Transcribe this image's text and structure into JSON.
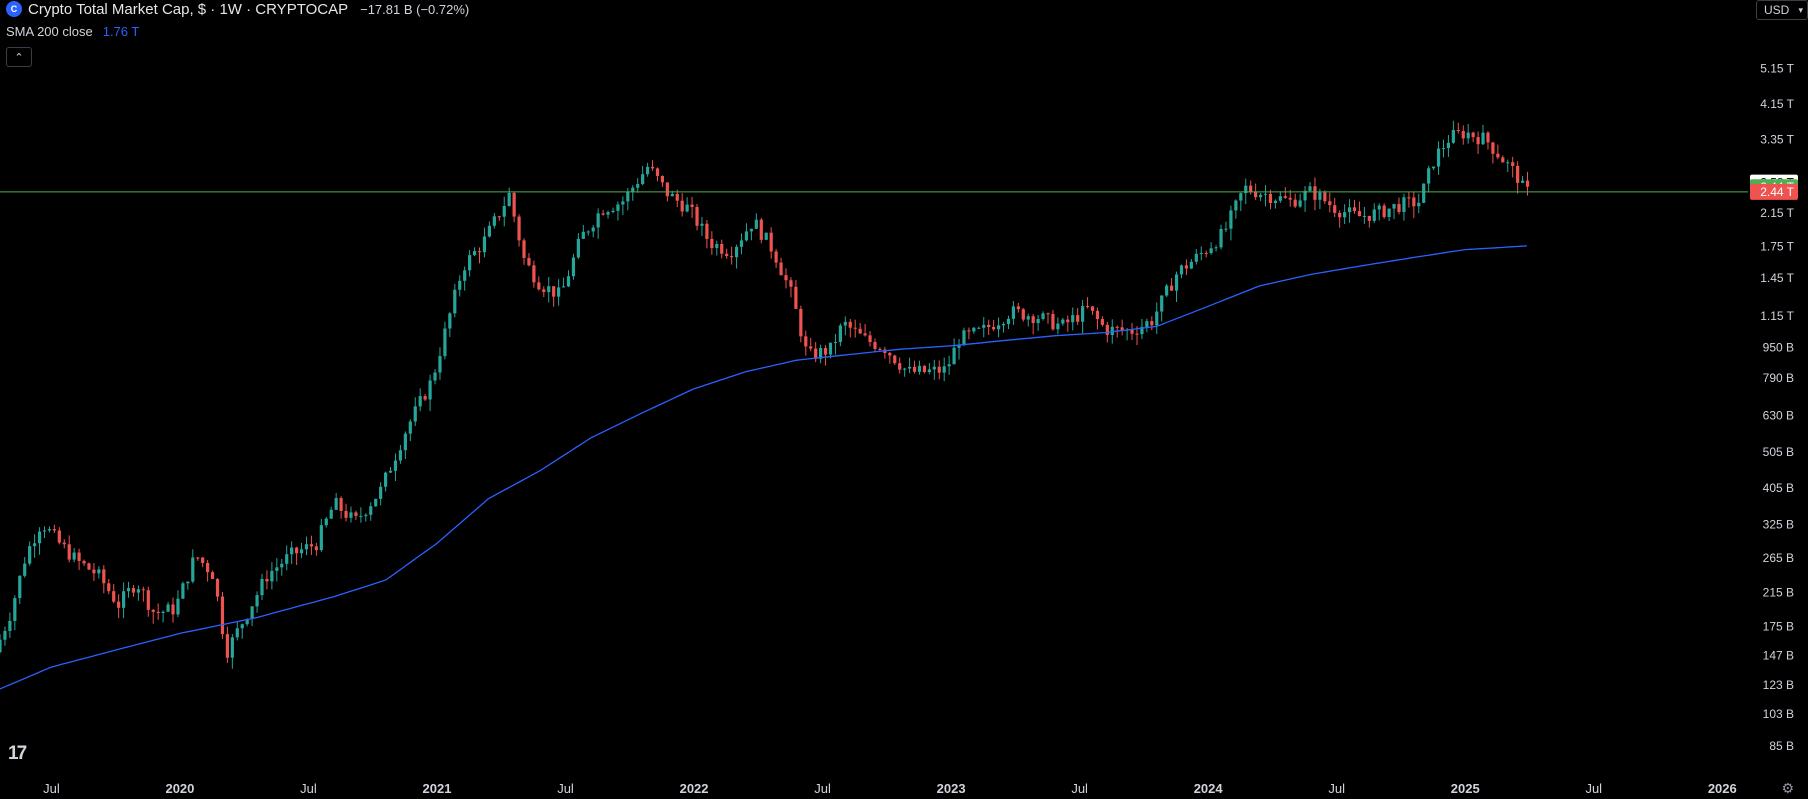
{
  "header": {
    "symbol_icon": "coin-icon",
    "title": "Crypto Total Market Cap, $ · 1W · CRYPTOCAP",
    "change": "−17.81 B (−0.72%)"
  },
  "indicator": {
    "label": "SMA 200 close",
    "value": "1.76 T"
  },
  "currency": {
    "label": "USD",
    "icon": "chevron-down-icon"
  },
  "collapse_icon": "chevron-up-icon",
  "logo": "17",
  "settings_icon": "gear-icon",
  "colors": {
    "background": "#000000",
    "up": "#26a69a",
    "down": "#ef5350",
    "sma": "#2962ff",
    "hline": "#4caf50",
    "text": "#d1d4dc"
  },
  "chart_data": {
    "type": "candlestick",
    "title": "Crypto Total Market Cap, $ · 1W · CRYPTOCAP",
    "y_scale": "log",
    "ylim": [
      0.078,
      6.2
    ],
    "y_unit": "trillion USD",
    "x_range": [
      2019.3,
      2026.1
    ],
    "y_ticks": [
      {
        "label": "5.15 T",
        "value": 5.15
      },
      {
        "label": "4.15 T",
        "value": 4.15
      },
      {
        "label": "3.35 T",
        "value": 3.35
      },
      {
        "label": "2.15 T",
        "value": 2.15
      },
      {
        "label": "1.75 T",
        "value": 1.75
      },
      {
        "label": "1.45 T",
        "value": 1.45
      },
      {
        "label": "1.15 T",
        "value": 1.15
      },
      {
        "label": "950 B",
        "value": 0.95
      },
      {
        "label": "790 B",
        "value": 0.79
      },
      {
        "label": "630 B",
        "value": 0.63
      },
      {
        "label": "505 B",
        "value": 0.505
      },
      {
        "label": "405 B",
        "value": 0.405
      },
      {
        "label": "325 B",
        "value": 0.325
      },
      {
        "label": "265 B",
        "value": 0.265
      },
      {
        "label": "215 B",
        "value": 0.215
      },
      {
        "label": "175 B",
        "value": 0.175
      },
      {
        "label": "147 B",
        "value": 0.147
      },
      {
        "label": "123 B",
        "value": 0.123
      },
      {
        "label": "103 B",
        "value": 0.103
      },
      {
        "label": "85 B",
        "value": 0.085
      }
    ],
    "x_ticks": [
      {
        "label": "Jul",
        "value": 2019.5,
        "bold": false
      },
      {
        "label": "2020",
        "value": 2020.0,
        "bold": true
      },
      {
        "label": "Jul",
        "value": 2020.5,
        "bold": false
      },
      {
        "label": "2021",
        "value": 2021.0,
        "bold": true
      },
      {
        "label": "Jul",
        "value": 2021.5,
        "bold": false
      },
      {
        "label": "2022",
        "value": 2022.0,
        "bold": true
      },
      {
        "label": "Jul",
        "value": 2022.5,
        "bold": false
      },
      {
        "label": "2023",
        "value": 2023.0,
        "bold": true
      },
      {
        "label": "Jul",
        "value": 2023.5,
        "bold": false
      },
      {
        "label": "2024",
        "value": 2024.0,
        "bold": true
      },
      {
        "label": "Jul",
        "value": 2024.5,
        "bold": false
      },
      {
        "label": "2025",
        "value": 2025.0,
        "bold": true
      },
      {
        "label": "Jul",
        "value": 2025.5,
        "bold": false
      },
      {
        "label": "2026",
        "value": 2026.0,
        "bold": true
      }
    ],
    "price_badges": [
      {
        "label": "2.58 T",
        "value": 2.58,
        "style": "white"
      },
      {
        "label": "2.44 T",
        "value": 2.51,
        "style": "green"
      },
      {
        "label": "2.44 T",
        "value": 2.44,
        "style": "red"
      }
    ],
    "horizontal_line": {
      "value": 2.44
    },
    "price_path": [
      [
        2019.3,
        0.15
      ],
      [
        2019.36,
        0.19
      ],
      [
        2019.42,
        0.27
      ],
      [
        2019.48,
        0.33
      ],
      [
        2019.55,
        0.29
      ],
      [
        2019.62,
        0.26
      ],
      [
        2019.7,
        0.24
      ],
      [
        2019.78,
        0.2
      ],
      [
        2019.85,
        0.23
      ],
      [
        2019.92,
        0.19
      ],
      [
        2020.0,
        0.195
      ],
      [
        2020.08,
        0.27
      ],
      [
        2020.15,
        0.24
      ],
      [
        2020.2,
        0.15
      ],
      [
        2020.28,
        0.19
      ],
      [
        2020.36,
        0.24
      ],
      [
        2020.45,
        0.27
      ],
      [
        2020.55,
        0.29
      ],
      [
        2020.62,
        0.37
      ],
      [
        2020.7,
        0.33
      ],
      [
        2020.8,
        0.4
      ],
      [
        2020.9,
        0.58
      ],
      [
        2021.0,
        0.78
      ],
      [
        2021.06,
        1.1
      ],
      [
        2021.12,
        1.55
      ],
      [
        2021.2,
        1.8
      ],
      [
        2021.3,
        2.4
      ],
      [
        2021.36,
        1.6
      ],
      [
        2021.42,
        1.4
      ],
      [
        2021.5,
        1.3
      ],
      [
        2021.58,
        1.85
      ],
      [
        2021.66,
        2.2
      ],
      [
        2021.74,
        2.3
      ],
      [
        2021.84,
        2.85
      ],
      [
        2021.92,
        2.4
      ],
      [
        2022.0,
        2.2
      ],
      [
        2022.08,
        1.8
      ],
      [
        2022.16,
        1.7
      ],
      [
        2022.25,
        2.05
      ],
      [
        2022.33,
        1.7
      ],
      [
        2022.4,
        1.3
      ],
      [
        2022.46,
        0.9
      ],
      [
        2022.55,
        0.94
      ],
      [
        2022.6,
        1.1
      ],
      [
        2022.68,
        1.0
      ],
      [
        2022.76,
        0.95
      ],
      [
        2022.85,
        0.82
      ],
      [
        2022.92,
        0.82
      ],
      [
        2023.0,
        0.83
      ],
      [
        2023.05,
        1.0
      ],
      [
        2023.14,
        1.05
      ],
      [
        2023.25,
        1.18
      ],
      [
        2023.35,
        1.15
      ],
      [
        2023.45,
        1.08
      ],
      [
        2023.55,
        1.2
      ],
      [
        2023.62,
        1.06
      ],
      [
        2023.72,
        1.05
      ],
      [
        2023.8,
        1.12
      ],
      [
        2023.9,
        1.5
      ],
      [
        2023.98,
        1.65
      ],
      [
        2024.08,
        1.9
      ],
      [
        2024.16,
        2.5
      ],
      [
        2024.25,
        2.4
      ],
      [
        2024.34,
        2.3
      ],
      [
        2024.42,
        2.45
      ],
      [
        2024.52,
        2.2
      ],
      [
        2024.6,
        2.1
      ],
      [
        2024.68,
        2.15
      ],
      [
        2024.76,
        2.25
      ],
      [
        2024.84,
        2.3
      ],
      [
        2024.9,
        3.0
      ],
      [
        2024.96,
        3.4
      ],
      [
        2025.02,
        3.5
      ],
      [
        2025.1,
        3.35
      ],
      [
        2025.16,
        3.0
      ],
      [
        2025.22,
        2.7
      ],
      [
        2025.25,
        2.44
      ]
    ],
    "sma_200": [
      [
        2019.3,
        0.12
      ],
      [
        2019.5,
        0.137
      ],
      [
        2019.8,
        0.155
      ],
      [
        2020.0,
        0.168
      ],
      [
        2020.3,
        0.185
      ],
      [
        2020.6,
        0.21
      ],
      [
        2020.8,
        0.232
      ],
      [
        2021.0,
        0.29
      ],
      [
        2021.2,
        0.38
      ],
      [
        2021.4,
        0.45
      ],
      [
        2021.6,
        0.55
      ],
      [
        2021.8,
        0.64
      ],
      [
        2022.0,
        0.74
      ],
      [
        2022.2,
        0.82
      ],
      [
        2022.4,
        0.88
      ],
      [
        2022.6,
        0.91
      ],
      [
        2022.8,
        0.94
      ],
      [
        2023.0,
        0.96
      ],
      [
        2023.2,
        0.99
      ],
      [
        2023.4,
        1.02
      ],
      [
        2023.6,
        1.04
      ],
      [
        2023.8,
        1.08
      ],
      [
        2024.0,
        1.22
      ],
      [
        2024.2,
        1.38
      ],
      [
        2024.4,
        1.48
      ],
      [
        2024.6,
        1.56
      ],
      [
        2024.8,
        1.64
      ],
      [
        2025.0,
        1.72
      ],
      [
        2025.25,
        1.76
      ]
    ]
  }
}
